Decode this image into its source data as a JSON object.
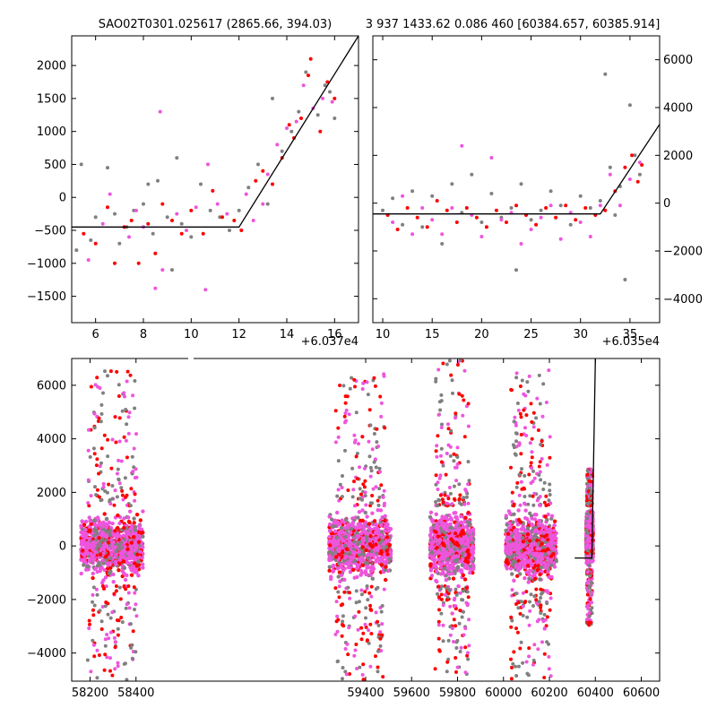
{
  "chart_data": [
    {
      "type": "scatter",
      "title": "SAO02T0301.025617 (2865.66, 394.03)",
      "x_offset_label": "+6.037e4",
      "xlim": [
        5,
        17
      ],
      "ylim": [
        -1900,
        2450
      ],
      "xticks": [
        "6",
        "8",
        "10",
        "12",
        "14",
        "16"
      ],
      "yticks": [
        "-1500",
        "-1000",
        "-500",
        "0",
        "500",
        "1000",
        "1500",
        "2000"
      ],
      "model_line": {
        "x": [
          5,
          12,
          17
        ],
        "y": [
          -450,
          -450,
          2450
        ]
      },
      "series": [
        {
          "color": "#808080",
          "points": [
            [
              5.2,
              -800
            ],
            [
              5.4,
              500
            ],
            [
              5.8,
              -650
            ],
            [
              6.0,
              -300
            ],
            [
              6.5,
              450
            ],
            [
              6.8,
              -250
            ],
            [
              7.0,
              -700
            ],
            [
              7.3,
              -450
            ],
            [
              7.6,
              -200
            ],
            [
              8.0,
              -100
            ],
            [
              8.2,
              200
            ],
            [
              8.4,
              -550
            ],
            [
              8.6,
              250
            ],
            [
              9.0,
              -300
            ],
            [
              9.2,
              -1100
            ],
            [
              9.4,
              600
            ],
            [
              9.6,
              -400
            ],
            [
              10.0,
              -600
            ],
            [
              10.4,
              200
            ],
            [
              10.8,
              -200
            ],
            [
              11.2,
              -300
            ],
            [
              11.6,
              -500
            ],
            [
              12.0,
              -200
            ],
            [
              12.4,
              150
            ],
            [
              12.8,
              500
            ],
            [
              13.2,
              -100
            ],
            [
              13.4,
              1500
            ],
            [
              13.8,
              700
            ],
            [
              14.2,
              1000
            ],
            [
              14.5,
              1300
            ],
            [
              14.8,
              1900
            ],
            [
              15.3,
              1250
            ],
            [
              15.6,
              1700
            ],
            [
              15.8,
              1600
            ],
            [
              16.0,
              1200
            ]
          ]
        },
        {
          "color": "#ff0000",
          "points": [
            [
              5.5,
              -550
            ],
            [
              6.0,
              -700
            ],
            [
              6.5,
              -150
            ],
            [
              6.8,
              -1000
            ],
            [
              7.2,
              -450
            ],
            [
              7.5,
              -350
            ],
            [
              7.8,
              -1000
            ],
            [
              8.2,
              -400
            ],
            [
              8.5,
              -850
            ],
            [
              8.8,
              -100
            ],
            [
              9.2,
              -350
            ],
            [
              9.6,
              -550
            ],
            [
              10.0,
              -200
            ],
            [
              10.5,
              -550
            ],
            [
              10.9,
              100
            ],
            [
              11.3,
              -300
            ],
            [
              11.8,
              -350
            ],
            [
              12.1,
              -500
            ],
            [
              12.7,
              250
            ],
            [
              13.0,
              400
            ],
            [
              13.4,
              200
            ],
            [
              13.8,
              600
            ],
            [
              14.1,
              1100
            ],
            [
              14.3,
              900
            ],
            [
              14.6,
              1200
            ],
            [
              14.9,
              1850
            ],
            [
              15.0,
              2100
            ],
            [
              15.4,
              1000
            ],
            [
              15.7,
              1750
            ],
            [
              16.0,
              1500
            ]
          ]
        },
        {
          "color": "#ee55dd",
          "points": [
            [
              5.7,
              -950
            ],
            [
              6.3,
              -400
            ],
            [
              6.6,
              50
            ],
            [
              7.4,
              -600
            ],
            [
              7.7,
              -200
            ],
            [
              8.0,
              -450
            ],
            [
              8.5,
              -1380
            ],
            [
              8.7,
              1300
            ],
            [
              8.8,
              -1100
            ],
            [
              9.4,
              -250
            ],
            [
              9.8,
              -500
            ],
            [
              10.2,
              -150
            ],
            [
              10.6,
              -1400
            ],
            [
              10.7,
              500
            ],
            [
              11.1,
              -100
            ],
            [
              11.5,
              -250
            ],
            [
              12.3,
              50
            ],
            [
              12.6,
              -350
            ],
            [
              13.0,
              -100
            ],
            [
              13.2,
              350
            ],
            [
              13.6,
              800
            ],
            [
              14.0,
              1050
            ],
            [
              14.4,
              1150
            ],
            [
              14.7,
              1700
            ],
            [
              15.1,
              1350
            ],
            [
              15.5,
              1500
            ],
            [
              15.9,
              1450
            ]
          ]
        }
      ]
    },
    {
      "type": "scatter",
      "title": "3 937 1433.62 0.086 460 [60384.657, 60385.914]",
      "x_offset_label": "+6.035e4",
      "xlim": [
        9,
        38
      ],
      "ylim": [
        -5000,
        7000
      ],
      "xticks": [
        "10",
        "15",
        "20",
        "25",
        "30",
        "35"
      ],
      "yticks": [
        "-4000",
        "-2000",
        "0",
        "2000",
        "4000",
        "6000"
      ],
      "model_line": {
        "x": [
          9,
          32,
          38
        ],
        "y": [
          -450,
          -450,
          3300
        ]
      },
      "series": [
        {
          "color": "#808080",
          "points": [
            [
              10,
              -300
            ],
            [
              11,
              200
            ],
            [
              12,
              -900
            ],
            [
              13,
              500
            ],
            [
              14,
              -1000
            ],
            [
              15,
              300
            ],
            [
              16,
              -1700
            ],
            [
              17,
              800
            ],
            [
              18,
              -400
            ],
            [
              19,
              1200
            ],
            [
              20,
              -800
            ],
            [
              21,
              400
            ],
            [
              22,
              -600
            ],
            [
              23,
              -200
            ],
            [
              23.5,
              -2800
            ],
            [
              24,
              800
            ],
            [
              25,
              -700
            ],
            [
              26,
              -300
            ],
            [
              27,
              500
            ],
            [
              28,
              -100
            ],
            [
              29,
              -900
            ],
            [
              30,
              300
            ],
            [
              31,
              -200
            ],
            [
              32,
              100
            ],
            [
              32.5,
              5400
            ],
            [
              33,
              1500
            ],
            [
              33.5,
              -500
            ],
            [
              34,
              700
            ],
            [
              34.5,
              -3200
            ],
            [
              35,
              4100
            ],
            [
              35.5,
              2000
            ],
            [
              36,
              1200
            ]
          ]
        },
        {
          "color": "#ff0000",
          "points": [
            [
              10.5,
              -500
            ],
            [
              11.5,
              -1100
            ],
            [
              12.5,
              -200
            ],
            [
              13.5,
              -600
            ],
            [
              14.5,
              -1000
            ],
            [
              15.5,
              100
            ],
            [
              16.5,
              -300
            ],
            [
              17.5,
              -800
            ],
            [
              18.5,
              -200
            ],
            [
              19.5,
              -600
            ],
            [
              20.5,
              -1000
            ],
            [
              21.5,
              -300
            ],
            [
              22.5,
              -800
            ],
            [
              23.5,
              -100
            ],
            [
              24.5,
              -500
            ],
            [
              25.5,
              -900
            ],
            [
              26.5,
              -200
            ],
            [
              27.5,
              -600
            ],
            [
              28.5,
              -100
            ],
            [
              29.5,
              -700
            ],
            [
              30.5,
              -200
            ],
            [
              31.5,
              -500
            ],
            [
              32.5,
              -300
            ],
            [
              33.5,
              500
            ],
            [
              34.5,
              1500
            ],
            [
              35.2,
              2000
            ],
            [
              35.8,
              900
            ],
            [
              36.2,
              1600
            ]
          ]
        },
        {
          "color": "#ee55dd",
          "points": [
            [
              11,
              -800
            ],
            [
              12,
              300
            ],
            [
              13,
              -1300
            ],
            [
              14,
              -200
            ],
            [
              15,
              -700
            ],
            [
              16,
              -1300
            ],
            [
              17,
              -200
            ],
            [
              18,
              2400
            ],
            [
              19,
              -500
            ],
            [
              20,
              -1400
            ],
            [
              21,
              1900
            ],
            [
              22,
              -700
            ],
            [
              23,
              -400
            ],
            [
              24,
              -1700
            ],
            [
              25,
              -1100
            ],
            [
              26,
              -600
            ],
            [
              27,
              -100
            ],
            [
              28,
              -1500
            ],
            [
              29,
              -400
            ],
            [
              30,
              -800
            ],
            [
              31,
              -1400
            ],
            [
              32,
              -100
            ],
            [
              33,
              1200
            ],
            [
              34,
              -100
            ],
            [
              35,
              1000
            ],
            [
              36,
              1700
            ]
          ]
        }
      ]
    },
    {
      "type": "scatter",
      "xlim": [
        58120,
        60680
      ],
      "ylim": [
        -5050,
        7000
      ],
      "xticks": [
        "58200",
        "58400",
        "59400",
        "59600",
        "59800",
        "60000",
        "60200",
        "60400",
        "60600"
      ],
      "yticks": [
        "-4000",
        "-2000",
        "0",
        "2000",
        "4000",
        "6000"
      ],
      "model_line": {
        "x": [
          60310,
          60385,
          60400
        ],
        "y": [
          -450,
          -450,
          7000
        ]
      },
      "clusters": [
        {
          "x_range": [
            58160,
            58430
          ],
          "y_core": [
            -1500,
            1500
          ],
          "y_halo": [
            -5000,
            7000
          ]
        },
        {
          "x_range": [
            59240,
            59510
          ],
          "y_core": [
            -1500,
            1500
          ],
          "y_halo": [
            -5000,
            6500
          ]
        },
        {
          "x_range": [
            59680,
            59870
          ],
          "y_core": [
            -1500,
            1500
          ],
          "y_halo": [
            -4800,
            7000
          ]
        },
        {
          "x_range": [
            60010,
            60230
          ],
          "y_core": [
            -1600,
            1500
          ],
          "y_halo": [
            -5000,
            6700
          ]
        },
        {
          "x_range": [
            60360,
            60390
          ],
          "y_core": [
            -900,
            1500
          ],
          "y_halo": [
            -3000,
            2900
          ]
        }
      ],
      "series_colors": [
        "#808080",
        "#ff0000",
        "#ee55dd"
      ]
    }
  ]
}
